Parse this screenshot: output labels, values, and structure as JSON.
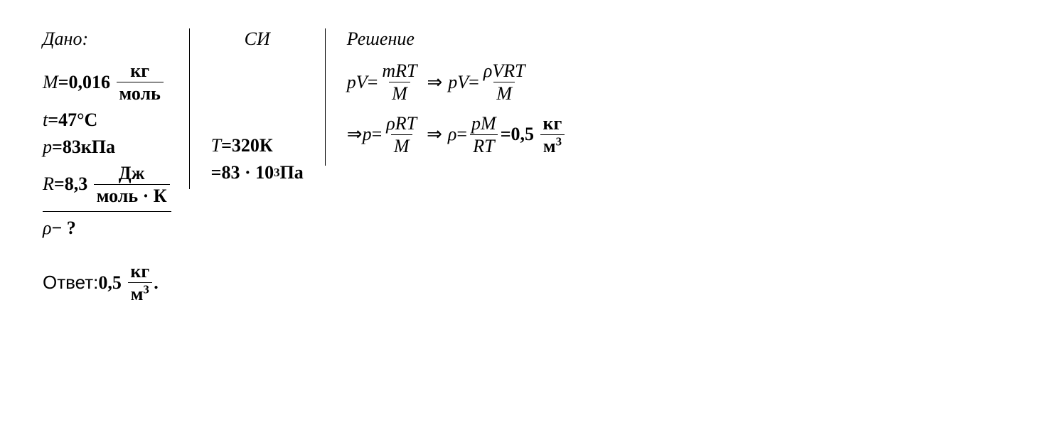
{
  "given": {
    "heading": "Дано:",
    "M": {
      "var": "M",
      "eq": " = ",
      "val": "0,016",
      "unit_num": "кг",
      "unit_den": "моль"
    },
    "t": {
      "var": "t",
      "eq": " = ",
      "val": "47",
      "unit": " °C"
    },
    "p": {
      "var": "p",
      "eq": " = ",
      "val": "83",
      "unit": " кПа"
    },
    "R": {
      "var": "R",
      "eq": " = ",
      "val": "8,3",
      "unit_num": "Дж",
      "unit_den": "моль · К"
    },
    "find": {
      "var": "ρ",
      "rest": " − ?"
    }
  },
  "si": {
    "heading": "СИ",
    "T": {
      "var": "T",
      "eq": " = ",
      "val": "320",
      "unit": " К"
    },
    "p": {
      "eq": "= ",
      "val": "83 · 10",
      "exp": "3",
      "unit": " Па"
    }
  },
  "solution": {
    "heading": "Решение",
    "eq1": {
      "lhs1": "pV",
      "eq": " = ",
      "frac1_num": "mRT",
      "frac1_den": "M",
      "arrow": " ⇒ ",
      "lhs2": "pV",
      "frac2_num": "ρVRT",
      "frac2_den": "M"
    },
    "eq2": {
      "arrow1": "⇒ ",
      "lhs1": "p",
      "eq": " = ",
      "frac1_num": "ρRT",
      "frac1_den": "M",
      "arrow2": " ⇒ ",
      "lhs2": "ρ",
      "frac2_num": "pM",
      "frac2_den": "RT",
      "eq2": " = ",
      "val": "0,5",
      "unit_num": "кг",
      "unit_den_base": "м",
      "unit_den_exp": "3"
    }
  },
  "answer": {
    "label": "Ответ: ",
    "val": "0,5",
    "unit_num": "кг",
    "unit_den_base": "м",
    "unit_den_exp": "3",
    "period": "."
  }
}
